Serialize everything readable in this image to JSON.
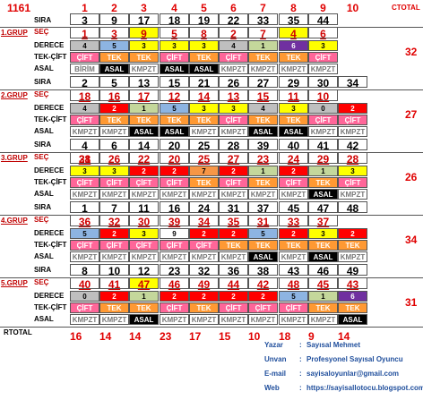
{
  "corner": "1161",
  "ctotal_label": "CTOTAL",
  "rtotal_label": "RTOTAL",
  "col_headers": [
    "1",
    "2",
    "3",
    "4",
    "5",
    "6",
    "7",
    "8",
    "9",
    "10"
  ],
  "row_labels": {
    "sira": "SIRA",
    "derece": "DERECE",
    "tek": "TEK-ÇİFT",
    "asal": "ASAL",
    "sec": "SEÇ"
  },
  "colors": {
    "gray": "#bfbfbf",
    "red": "#ff0000",
    "blue": "#8db4e2",
    "yellow": "#ffff00",
    "olive": "#c4d79b",
    "purple": "#7030a0",
    "salmon": "#f79646",
    "orange": "#ff9933",
    "pink": "#ff6699",
    "black": "#000000",
    "white": "#ffffff"
  },
  "sira0": [
    "3",
    "9",
    "17",
    "18",
    "19",
    "22",
    "33",
    "35",
    "44"
  ],
  "groups": [
    {
      "label": "1.GRUP",
      "sec": [
        "1",
        "3",
        "9",
        "5",
        "8",
        "2",
        "7",
        "4",
        "6"
      ],
      "sec_highlight": [
        2,
        7
      ],
      "derece": [
        [
          "4",
          "gray"
        ],
        [
          "5",
          "blue"
        ],
        [
          "3",
          "yellow"
        ],
        [
          "3",
          "yellow"
        ],
        [
          "3",
          "yellow"
        ],
        [
          "4",
          "gray"
        ],
        [
          "1",
          "olive"
        ],
        [
          "6",
          "purple"
        ],
        [
          "3",
          "yellow"
        ]
      ],
      "tek": [
        [
          "ÇİFT",
          "pink"
        ],
        [
          "TEK",
          "orange"
        ],
        [
          "TEK",
          "orange"
        ],
        [
          "ÇİFT",
          "pink"
        ],
        [
          "TEK",
          "orange"
        ],
        [
          "ÇİFT",
          "pink"
        ],
        [
          "TEK",
          "orange"
        ],
        [
          "TEK",
          "orange"
        ],
        [
          "ÇİFT",
          "pink"
        ]
      ],
      "asal": [
        "BİRİM",
        "ASAL",
        "KMPZT",
        "ASAL",
        "ASAL",
        "KMPZT",
        "KMPZT",
        "KMPZT",
        "KMPZT"
      ],
      "asal_style": [
        "w",
        "b",
        "w",
        "b",
        "b",
        "w",
        "w",
        "w",
        "w"
      ],
      "ctotal": "32",
      "sira": [
        "2",
        "5",
        "13",
        "15",
        "21",
        "26",
        "27",
        "29",
        "30",
        "34"
      ]
    },
    {
      "label": "2.GRUP",
      "sec": [
        "18",
        "16",
        "17",
        "12",
        "14",
        "13",
        "15",
        "11",
        "10"
      ],
      "sec_highlight": [],
      "derece": [
        [
          "4",
          "gray"
        ],
        [
          "2",
          "red"
        ],
        [
          "1",
          "olive"
        ],
        [
          "5",
          "blue"
        ],
        [
          "3",
          "yellow"
        ],
        [
          "3",
          "yellow"
        ],
        [
          "4",
          "gray"
        ],
        [
          "3",
          "yellow"
        ],
        [
          "0",
          "gray"
        ],
        [
          "2",
          "red"
        ]
      ],
      "tek": [
        [
          "ÇİFT",
          "pink"
        ],
        [
          "TEK",
          "orange"
        ],
        [
          "TEK",
          "orange"
        ],
        [
          "TEK",
          "orange"
        ],
        [
          "TEK",
          "orange"
        ],
        [
          "ÇİFT",
          "pink"
        ],
        [
          "TEK",
          "orange"
        ],
        [
          "TEK",
          "orange"
        ],
        [
          "ÇİFT",
          "pink"
        ],
        [
          "ÇİFT",
          "pink"
        ]
      ],
      "asal": [
        "KMPZT",
        "KMPZT",
        "ASAL",
        "ASAL",
        "KMPZT",
        "KMPZT",
        "ASAL",
        "ASAL",
        "KMPZT",
        "KMPZT"
      ],
      "asal_style": [
        "w",
        "w",
        "b",
        "b",
        "w",
        "w",
        "b",
        "b",
        "w",
        "w"
      ],
      "ctotal": "27",
      "sira": [
        "4",
        "6",
        "14",
        "20",
        "25",
        "28",
        "39",
        "40",
        "41",
        "42"
      ]
    },
    {
      "label": "3.GRUP",
      "sec": [
        "38",
        "21",
        "26",
        "22",
        "20",
        "25",
        "27",
        "23",
        "24",
        "29",
        "28"
      ],
      "sec_highlight": [],
      "derece": [
        [
          "3",
          "yellow"
        ],
        [
          "3",
          "yellow"
        ],
        [
          "2",
          "red"
        ],
        [
          "2",
          "red"
        ],
        [
          "7",
          "salmon"
        ],
        [
          "2",
          "red"
        ],
        [
          "1",
          "olive"
        ],
        [
          "2",
          "red"
        ],
        [
          "1",
          "olive"
        ],
        [
          "3",
          "yellow"
        ]
      ],
      "tek": [
        [
          "ÇİFT",
          "pink"
        ],
        [
          "ÇİFT",
          "pink"
        ],
        [
          "ÇİFT",
          "pink"
        ],
        [
          "ÇİFT",
          "pink"
        ],
        [
          "TEK",
          "orange"
        ],
        [
          "ÇİFT",
          "pink"
        ],
        [
          "TEK",
          "orange"
        ],
        [
          "ÇİFT",
          "pink"
        ],
        [
          "TEK",
          "orange"
        ],
        [
          "ÇİFT",
          "pink"
        ]
      ],
      "asal": [
        "KMPZT",
        "KMPZT",
        "KMPZT",
        "KMPZT",
        "KMPZT",
        "KMPZT",
        "KMPZT",
        "KMPZT",
        "ASAL",
        "KMPZT"
      ],
      "asal_style": [
        "w",
        "w",
        "w",
        "w",
        "w",
        "w",
        "w",
        "w",
        "b",
        "w"
      ],
      "ctotal": "26",
      "sira": [
        "1",
        "7",
        "11",
        "16",
        "24",
        "31",
        "37",
        "45",
        "47",
        "48"
      ]
    },
    {
      "label": "4.GRUP",
      "sec": [
        "36",
        "32",
        "30",
        "39",
        "34",
        "35",
        "31",
        "33",
        "37"
      ],
      "sec_highlight": [],
      "derece": [
        [
          "5",
          "blue"
        ],
        [
          "2",
          "red"
        ],
        [
          "3",
          "yellow"
        ],
        [
          "9",
          "white"
        ],
        [
          "2",
          "red"
        ],
        [
          "2",
          "red"
        ],
        [
          "5",
          "blue"
        ],
        [
          "2",
          "red"
        ],
        [
          "3",
          "yellow"
        ],
        [
          "2",
          "red"
        ]
      ],
      "tek": [
        [
          "ÇİFT",
          "pink"
        ],
        [
          "ÇİFT",
          "pink"
        ],
        [
          "ÇİFT",
          "pink"
        ],
        [
          "ÇİFT",
          "pink"
        ],
        [
          "ÇİFT",
          "pink"
        ],
        [
          "TEK",
          "orange"
        ],
        [
          "TEK",
          "orange"
        ],
        [
          "TEK",
          "orange"
        ],
        [
          "TEK",
          "orange"
        ],
        [
          "TEK",
          "orange"
        ]
      ],
      "asal": [
        "KMPZT",
        "KMPZT",
        "KMPZT",
        "KMPZT",
        "KMPZT",
        "KMPZT",
        "ASAL",
        "KMPZT",
        "ASAL",
        "KMPZT"
      ],
      "asal_style": [
        "w",
        "w",
        "w",
        "w",
        "w",
        "w",
        "b",
        "w",
        "b",
        "w"
      ],
      "ctotal": "34",
      "sira": [
        "8",
        "10",
        "12",
        "23",
        "32",
        "36",
        "38",
        "43",
        "46",
        "49"
      ]
    },
    {
      "label": "5.GRUP",
      "sec": [
        "40",
        "41",
        "47",
        "46",
        "49",
        "44",
        "42",
        "48",
        "45",
        "43"
      ],
      "sec_highlight": [
        2
      ],
      "derece": [
        [
          "0",
          "gray"
        ],
        [
          "2",
          "red"
        ],
        [
          "1",
          "olive"
        ],
        [
          "2",
          "red"
        ],
        [
          "2",
          "red"
        ],
        [
          "2",
          "red"
        ],
        [
          "2",
          "red"
        ],
        [
          "5",
          "blue"
        ],
        [
          "1",
          "olive"
        ],
        [
          "6",
          "purple"
        ]
      ],
      "tek": [
        [
          "ÇİFT",
          "pink"
        ],
        [
          "TEK",
          "orange"
        ],
        [
          "TEK",
          "orange"
        ],
        [
          "ÇİFT",
          "pink"
        ],
        [
          "TEK",
          "orange"
        ],
        [
          "ÇİFT",
          "pink"
        ],
        [
          "ÇİFT",
          "pink"
        ],
        [
          "ÇİFT",
          "pink"
        ],
        [
          "TEK",
          "orange"
        ],
        [
          "TEK",
          "orange"
        ]
      ],
      "asal": [
        "KMPZT",
        "KMPZT",
        "ASAL",
        "KMPZT",
        "KMPZT",
        "KMPZT",
        "KMPZT",
        "KMPZT",
        "KMPZT",
        "ASAL"
      ],
      "asal_style": [
        "w",
        "w",
        "b",
        "w",
        "w",
        "w",
        "w",
        "w",
        "w",
        "b"
      ],
      "ctotal": "31"
    }
  ],
  "rtotal": [
    "16",
    "14",
    "14",
    "23",
    "17",
    "15",
    "10",
    "18",
    "9",
    "14"
  ],
  "footer": [
    {
      "key": "Yazar",
      "value": "Sayısal Mehmet"
    },
    {
      "key": "Unvan",
      "value": "Profesyonel Sayısal Oyuncu"
    },
    {
      "key": "E-mail",
      "value": "sayisaloyunlar@gmail.com"
    },
    {
      "key": "Web",
      "value": "https://sayisallotocu.blogspot.com"
    }
  ]
}
